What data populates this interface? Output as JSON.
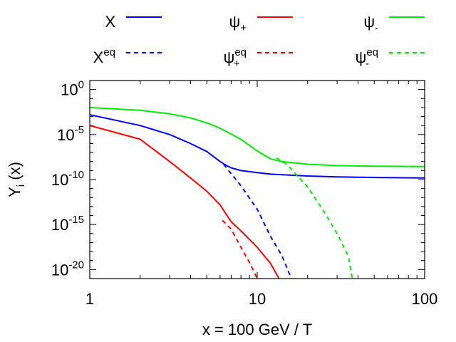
{
  "chart_data": {
    "type": "line",
    "title": "",
    "xlabel": "x = 100 GeV / T",
    "ylabel": {
      "main": "Y",
      "sub": "i",
      "rest": " (x)"
    },
    "xscale": "log",
    "yscale": "log",
    "xlim": [
      1,
      100
    ],
    "ylim": [
      1e-21,
      10.0
    ],
    "xticks": [
      {
        "value": 1,
        "label": "1"
      },
      {
        "value": 10,
        "label": "10"
      },
      {
        "value": 100,
        "label": "100"
      }
    ],
    "yticks": [
      {
        "value": 1.0,
        "base": "10",
        "exp": "0"
      },
      {
        "value": 1e-05,
        "base": "10",
        "exp": "-5"
      },
      {
        "value": 1e-10,
        "base": "10",
        "exp": "-10"
      },
      {
        "value": 1e-15,
        "base": "10",
        "exp": "-15"
      },
      {
        "value": 1e-20,
        "base": "10",
        "exp": "-20"
      }
    ],
    "legend_position": "top, outside plot",
    "series": [
      {
        "name": "X",
        "base": "X",
        "sub": "",
        "sup": "",
        "color": "#0000ff",
        "dash": false,
        "x": [
          1,
          2,
          3,
          4,
          5,
          6,
          6.5,
          7,
          8,
          10,
          12,
          20,
          30,
          50,
          100
        ],
        "y": [
          0.0016,
          0.0001,
          1e-05,
          1e-06,
          1.3e-07,
          1e-08,
          4e-09,
          2e-09,
          1e-09,
          6e-10,
          4e-10,
          2.5e-10,
          2e-10,
          1.7e-10,
          1.5e-10
        ]
      },
      {
        "name": "X eq",
        "base": "X",
        "sub": "",
        "sup": "eq",
        "color": "#0000ff",
        "dash": true,
        "x": [
          6.3,
          8,
          10,
          12,
          14,
          16
        ],
        "y": [
          5e-09,
          2e-11,
          5e-14,
          5e-17,
          4e-19,
          1e-21
        ]
      },
      {
        "name": "psi+",
        "base": "ψ",
        "sub": "+",
        "sup": "",
        "color": "#ff0000",
        "dash": false,
        "x": [
          1,
          2,
          3,
          4,
          5,
          6,
          7,
          8,
          10,
          12,
          13.5
        ],
        "y": [
          0.0001,
          3e-06,
          1e-08,
          1.5e-10,
          5e-12,
          1.5e-13,
          2e-15,
          2e-16,
          3e-18,
          5e-20,
          1e-21
        ]
      },
      {
        "name": "psi+ eq",
        "base": "ψ",
        "sub": "+",
        "sup": "eq",
        "color": "#ff0000",
        "dash": true,
        "x": [
          6.2,
          7,
          8,
          9,
          10
        ],
        "y": [
          3e-15,
          3e-16,
          3e-18,
          6e-20,
          1e-21
        ]
      },
      {
        "name": "psi-",
        "base": "ψ",
        "sub": "-",
        "sup": "",
        "color": "#00ee00",
        "dash": false,
        "x": [
          1,
          2,
          3,
          4,
          5,
          6,
          8,
          10,
          12,
          14,
          20,
          30,
          50,
          100
        ],
        "y": [
          0.01,
          0.005,
          0.002,
          0.0007,
          0.0002,
          5e-05,
          3e-06,
          1.5e-07,
          2e-08,
          1e-08,
          5e-09,
          3.5e-09,
          3e-09,
          2.8e-09
        ]
      },
      {
        "name": "psi- eq",
        "base": "ψ",
        "sub": "-",
        "sup": "eq",
        "color": "#00ee00",
        "dash": true,
        "x": [
          13,
          15,
          20,
          25,
          30,
          35,
          37
        ],
        "y": [
          2.5e-08,
          5e-09,
          1.5e-11,
          3e-14,
          1e-16,
          3e-19,
          1e-21
        ]
      }
    ]
  }
}
